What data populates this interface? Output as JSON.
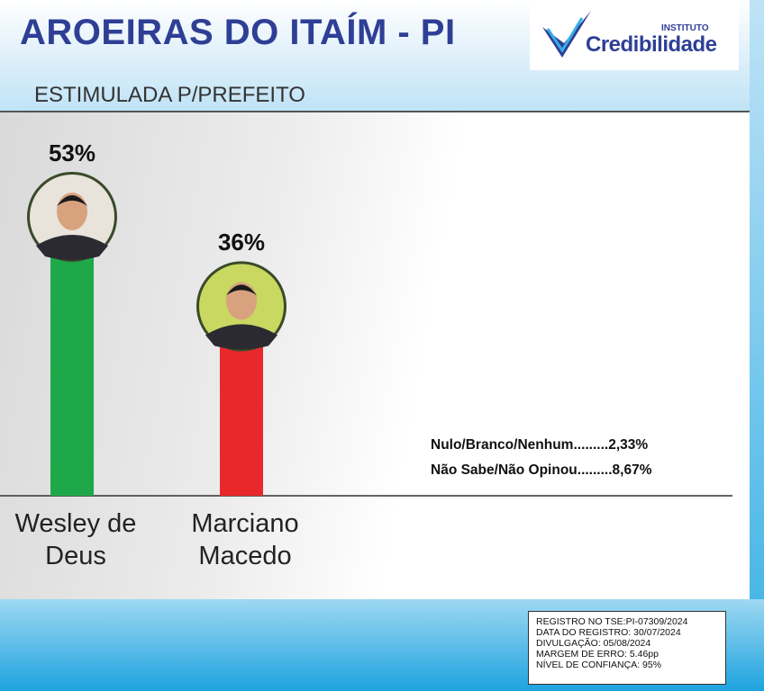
{
  "chart_data": {
    "type": "bar",
    "title": "AROEIRAS DO ITAÍM - PI",
    "subtitle": "ESTIMULADA P/PREFEITO",
    "categories": [
      "Wesley de Deus",
      "Marciano Macedo"
    ],
    "values": [
      53,
      36
    ],
    "value_labels": [
      "53%",
      "36%"
    ],
    "colors": [
      "#1fa84a",
      "#e8282a"
    ],
    "notes": [
      "Nulo/Branco/Nenhum.........2,33%",
      "Não Sabe/Não Opinou.........8,67%"
    ]
  },
  "logo": {
    "top": "INSTITUTO",
    "name": "Credibilidade"
  },
  "registry": [
    "REGISTRO NO TSE:PI-07309/2024",
    "DATA DO REGISTRO: 30/07/2024",
    "DIVULGAÇÃO: 05/08/2024",
    "MARGEM DE ERRO: 5.46pp",
    "NÍVEL DE CONFIANÇA: 95%"
  ]
}
